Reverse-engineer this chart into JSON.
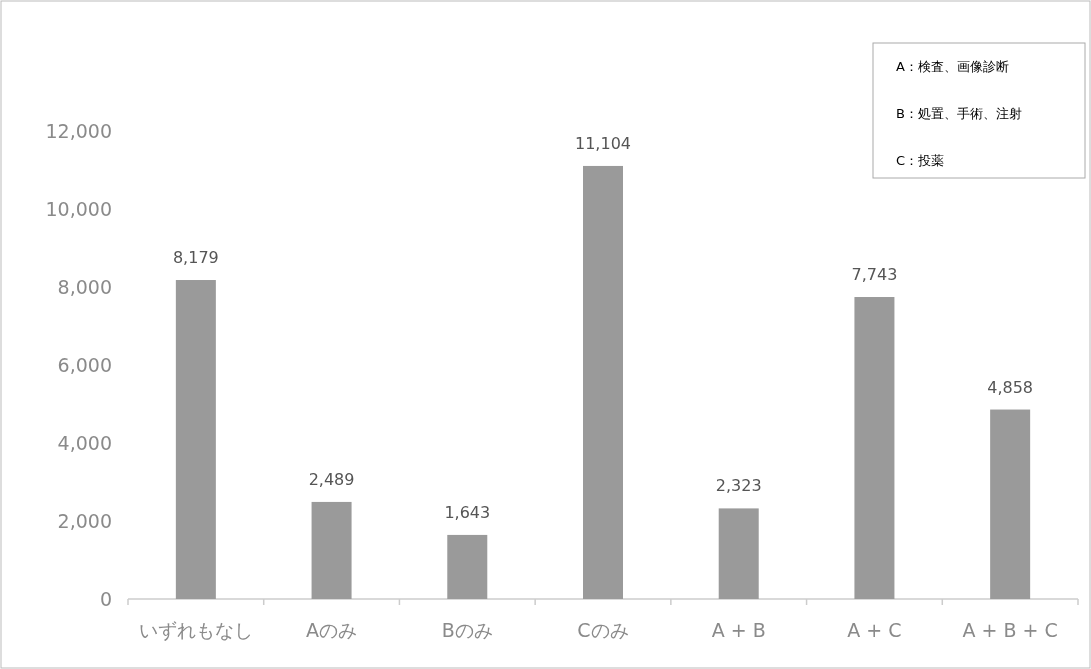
{
  "chart_data": {
    "type": "bar",
    "categories": [
      "いずれもなし",
      "Aのみ",
      "Bのみ",
      "Cのみ",
      "A + B",
      "A + C",
      "A + B + C"
    ],
    "values": [
      8179,
      2489,
      1643,
      11104,
      2323,
      7743,
      4858
    ],
    "color": "#9a9a9a",
    "value_labels": [
      "8,179",
      "2,489",
      "1,643",
      "11,104",
      "2,323",
      "7,743",
      "4,858"
    ],
    "ylim": [
      0,
      12000
    ],
    "yticks": [
      0,
      {
        "value": 2000,
        "label": "2,000"
      },
      {
        "value": 4000,
        "label": "4,000"
      },
      {
        "value": 6000,
        "label": "6,000"
      },
      {
        "value": 8000,
        "label": "8,000"
      },
      {
        "value": 10000,
        "label": "10,000"
      },
      {
        "value": 12000,
        "label": "12,000"
      }
    ],
    "grid": false,
    "annotations": [
      "A：検査、画像診断",
      "B：処置、手術、注射",
      "C：投薬"
    ]
  }
}
